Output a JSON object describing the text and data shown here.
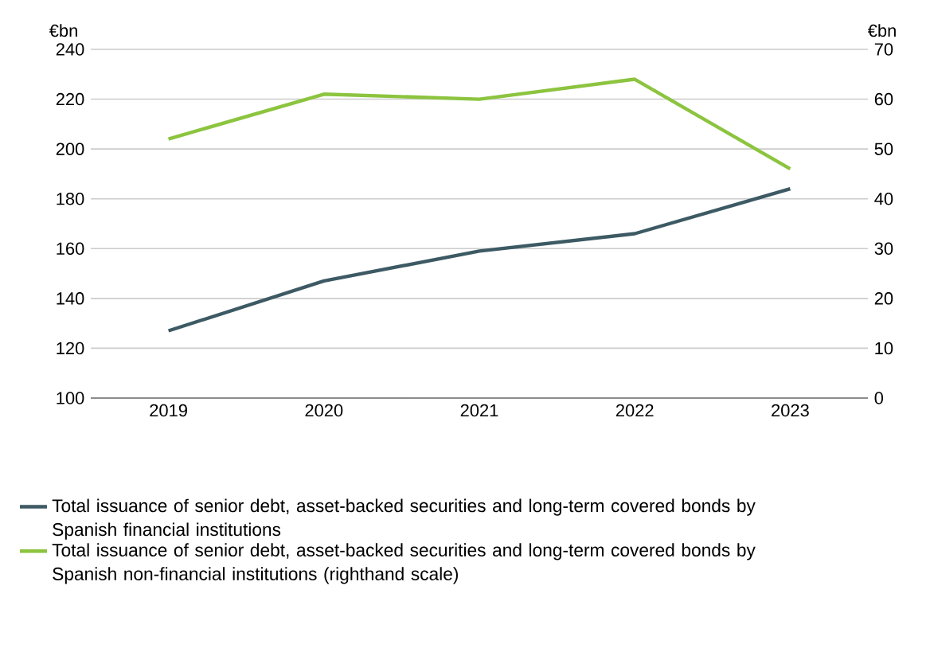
{
  "chart_data": {
    "type": "line",
    "categories": [
      "2019",
      "2020",
      "2021",
      "2022",
      "2023"
    ],
    "series": [
      {
        "name": "Total issuance of senior debt, asset-backed securities and long-term covered bonds by Spanish financial institutions",
        "color": "#3d5a64",
        "values": [
          127,
          147,
          159,
          166,
          184
        ]
      },
      {
        "name": "Total issuance of senior debt, asset-backed securities and long-term covered bonds by Spanish non-financial institutions (righthand scale)",
        "color": "#8cc43f",
        "values": [
          52,
          61,
          60,
          64,
          46
        ],
        "axis": "y2"
      }
    ],
    "ylabel": "€bn",
    "y2label": "€bn",
    "ylim": [
      100,
      240
    ],
    "yticks": [
      100,
      120,
      140,
      160,
      180,
      200,
      220,
      240
    ],
    "y2lim": [
      0,
      70
    ],
    "y2ticks": [
      0,
      10,
      20,
      30,
      40,
      50,
      60,
      70
    ],
    "grid": "y",
    "legend": "bottom"
  }
}
